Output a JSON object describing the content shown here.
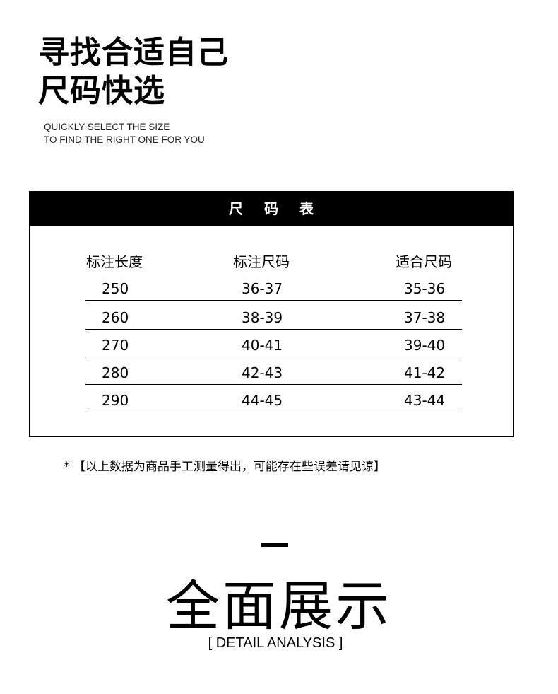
{
  "header": {
    "title_line1": "寻找合适自己",
    "title_line2": "尺码快选",
    "subtitle_line1": "QUICKLY SELECT THE SIZE",
    "subtitle_line2": "TO FIND THE RIGHT ONE FOR YOU"
  },
  "size_table": {
    "title": "尺码表",
    "columns": [
      "标注长度",
      "标注尺码",
      "适合尺码"
    ],
    "rows": [
      [
        "250",
        "36-37",
        "35-36"
      ],
      [
        "260",
        "38-39",
        "37-38"
      ],
      [
        "270",
        "40-41",
        "39-40"
      ],
      [
        "280",
        "42-43",
        "41-42"
      ],
      [
        "290",
        "44-45",
        "43-44"
      ]
    ]
  },
  "note": "* 【以上数据为商品手工测量得出，可能存在些误差请见谅】",
  "section": {
    "title": "全面展示",
    "subtitle": "[ DETAIL ANALYSIS ]"
  }
}
